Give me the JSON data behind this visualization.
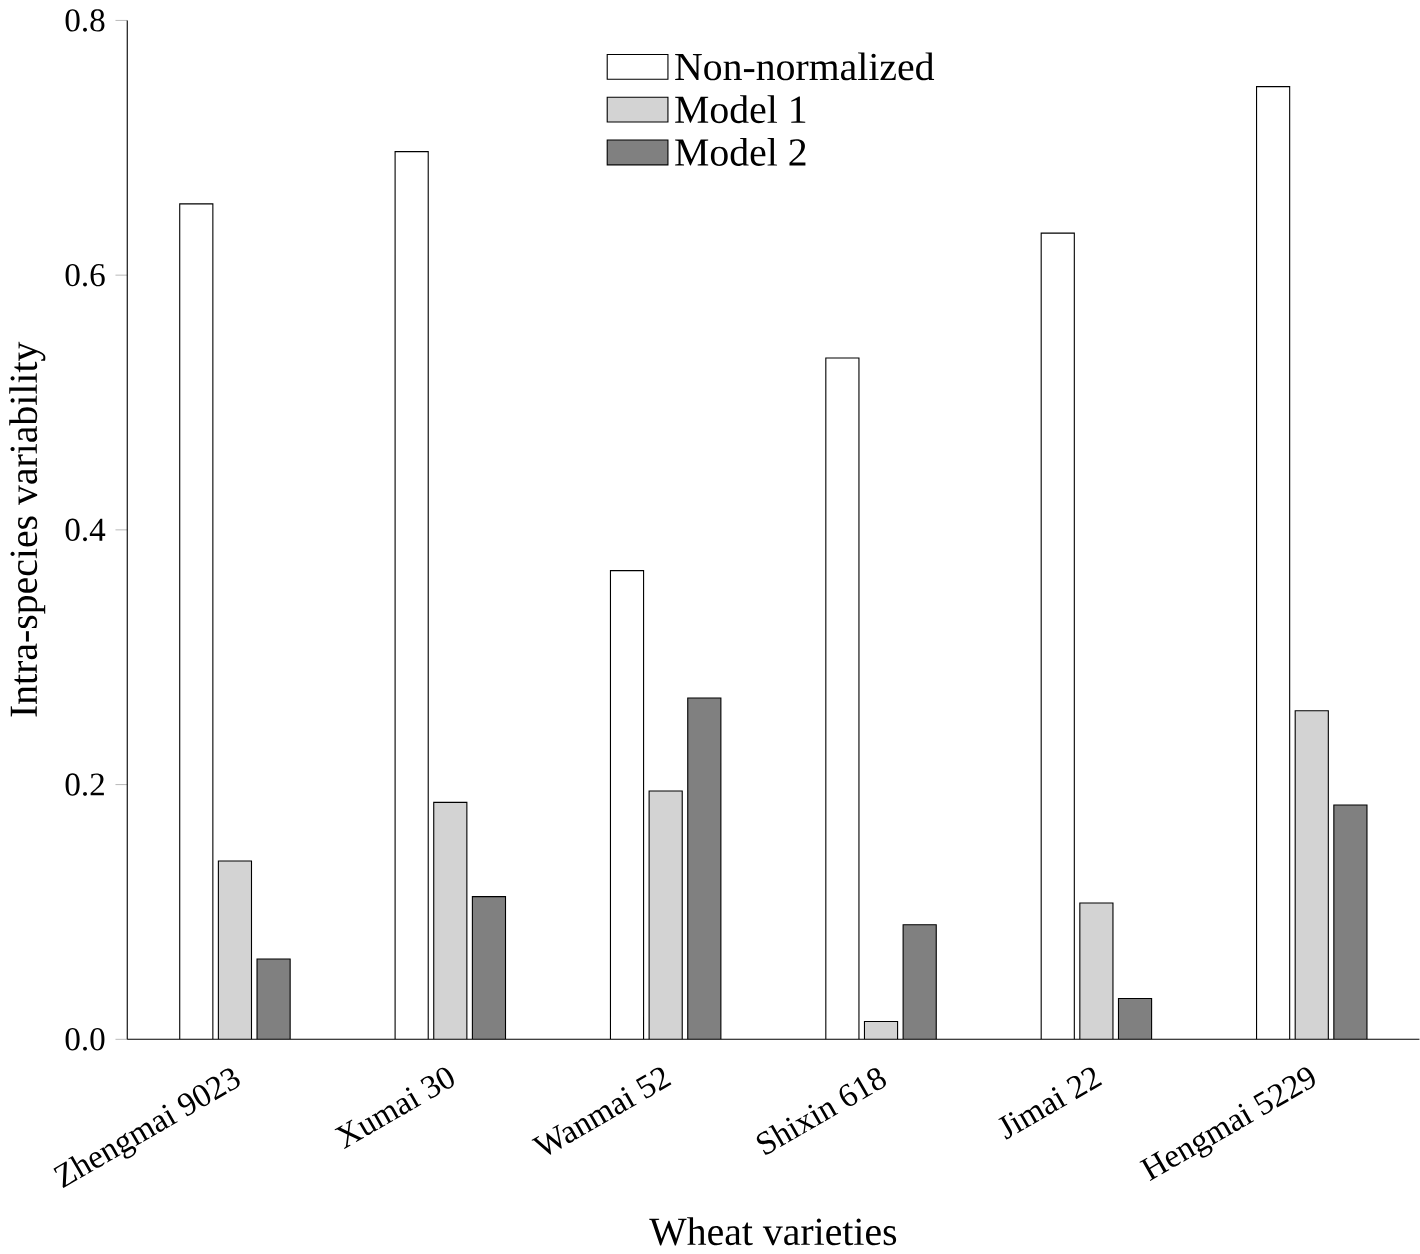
{
  "chart_data": {
    "type": "bar",
    "xlabel": "Wheat varieties",
    "ylabel": "Intra-species variability",
    "categories": [
      "Zhengmai 9023",
      "Xumai 30",
      "Wanmai 52",
      "Shixin 618",
      "Jimai 22",
      "Hengmai 5229"
    ],
    "series": [
      {
        "name": "Non-normalized",
        "color": "#ffffff",
        "values": [
          0.656,
          0.697,
          0.368,
          0.535,
          0.633,
          0.748
        ]
      },
      {
        "name": "Model 1",
        "color": "#d3d3d3",
        "values": [
          0.14,
          0.186,
          0.195,
          0.014,
          0.107,
          0.258
        ]
      },
      {
        "name": "Model 2",
        "color": "#808080",
        "values": [
          0.063,
          0.112,
          0.268,
          0.09,
          0.032,
          0.184
        ]
      }
    ],
    "ylim": [
      0,
      0.8
    ],
    "yticks": [
      {
        "value": 0,
        "label": "0.0"
      },
      {
        "value": 0.2,
        "label": "0.2"
      },
      {
        "value": 0.4,
        "label": "0.4"
      },
      {
        "value": 0.6,
        "label": "0.6"
      },
      {
        "value": 0.8,
        "label": "0.8"
      }
    ],
    "legend": "top",
    "grid": false
  }
}
